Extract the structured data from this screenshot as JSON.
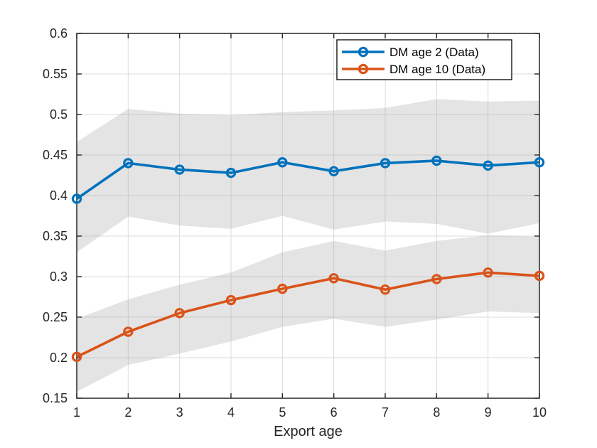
{
  "chart_data": {
    "type": "line",
    "title": "",
    "xlabel": "Export age",
    "ylabel": "",
    "xlim": [
      1,
      10
    ],
    "ylim": [
      0.15,
      0.6
    ],
    "grid": true,
    "legend_position": "northeast",
    "x": [
      1,
      2,
      3,
      4,
      5,
      6,
      7,
      8,
      9,
      10
    ],
    "xtick_labels": [
      "1",
      "2",
      "3",
      "4",
      "5",
      "6",
      "7",
      "8",
      "9",
      "10"
    ],
    "yticks": [
      0.15,
      0.2,
      0.25,
      0.3,
      0.35,
      0.4,
      0.45,
      0.5,
      0.55,
      0.6
    ],
    "ytick_labels": [
      "0.15",
      "0.2",
      "0.25",
      "0.3",
      "0.35",
      "0.4",
      "0.45",
      "0.5",
      "0.55",
      "0.6"
    ],
    "series": [
      {
        "name": "DM age 2 (Data)",
        "color": "#0072BD",
        "marker": "o",
        "values": [
          0.396,
          0.44,
          0.432,
          0.428,
          0.441,
          0.43,
          0.44,
          0.443,
          0.437,
          0.441
        ],
        "band_upper": [
          0.466,
          0.507,
          0.501,
          0.499,
          0.503,
          0.505,
          0.508,
          0.519,
          0.516,
          0.517
        ],
        "band_lower": [
          0.33,
          0.374,
          0.363,
          0.359,
          0.375,
          0.358,
          0.368,
          0.365,
          0.353,
          0.366
        ]
      },
      {
        "name": "DM age 10 (Data)",
        "color": "#D95319",
        "marker": "o",
        "values": [
          0.201,
          0.232,
          0.255,
          0.271,
          0.285,
          0.298,
          0.284,
          0.297,
          0.305,
          0.301
        ],
        "band_upper": [
          0.248,
          0.272,
          0.29,
          0.305,
          0.33,
          0.344,
          0.332,
          0.344,
          0.351,
          0.349
        ],
        "band_lower": [
          0.158,
          0.191,
          0.205,
          0.22,
          0.238,
          0.248,
          0.238,
          0.247,
          0.257,
          0.255
        ]
      }
    ],
    "colors": {
      "axis": "#262626",
      "tick_label": "#262626",
      "grid": "#DBDBDB",
      "band_fill": "#9E9E9E",
      "legend_border": "#000000",
      "legend_background": "#FFFFFF"
    }
  }
}
